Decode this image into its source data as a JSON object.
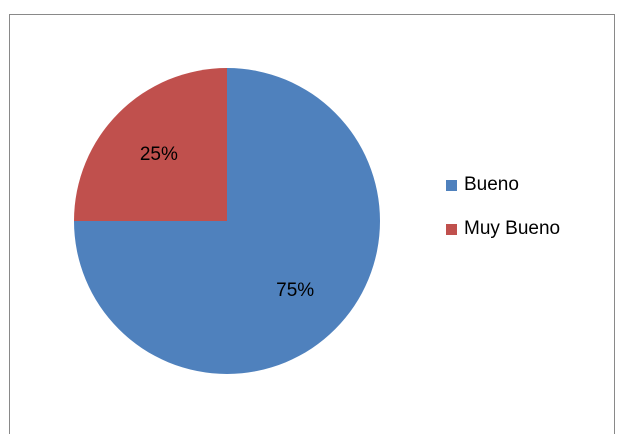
{
  "chart_data": {
    "type": "pie",
    "title": "",
    "categories": [
      "Bueno",
      "Muy Bueno"
    ],
    "values": [
      75,
      25
    ],
    "data_labels": [
      "75%",
      "25%"
    ],
    "colors": [
      "#4F81BD",
      "#C0504D"
    ],
    "start_angle_deg": 0,
    "direction": "clockwise",
    "legend_position": "right"
  }
}
